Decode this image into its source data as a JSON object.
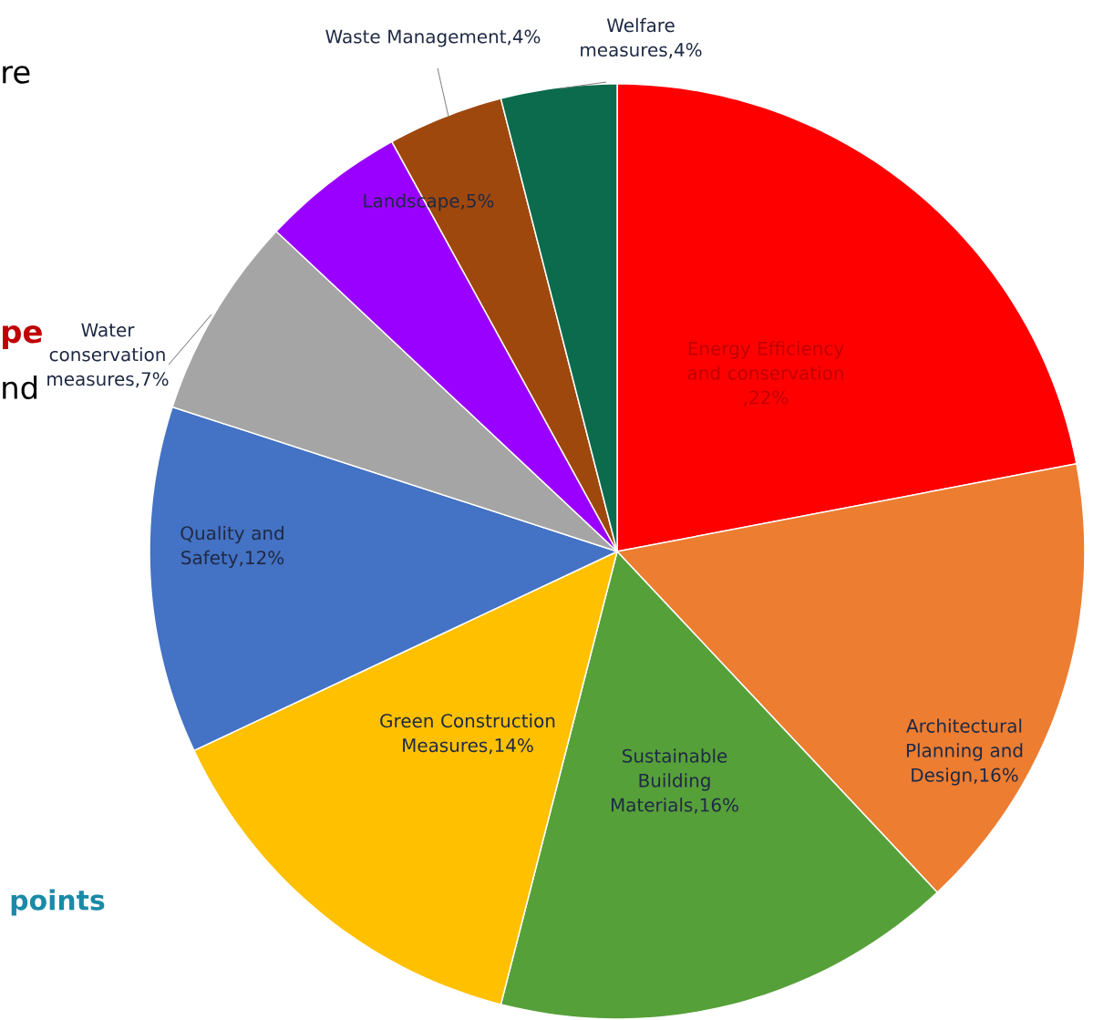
{
  "chart_data": {
    "type": "pie",
    "categories": [
      "Energy Efficiency and conservation",
      "Architectural Planning and Design",
      "Sustainable Building Materials",
      "Green Construction Measures",
      "Quality and Safety",
      "Water conservation measures",
      "Landscape",
      "Waste Management",
      "Welfare measures"
    ],
    "values": [
      22,
      16,
      16,
      14,
      12,
      7,
      5,
      4,
      4
    ],
    "value_labels": [
      ",22%",
      ",16%",
      ",16%",
      ",14%",
      ",12%",
      ",7%",
      ",5%",
      ",4%",
      ",4%"
    ],
    "colors": [
      "#ff0000",
      "#ed7d31",
      "#56a03a",
      "#ffc000",
      "#4472c4",
      "#a5a5a5",
      "#9a00ff",
      "#9e480e",
      "#0b6b4c"
    ],
    "annotations": [
      "re",
      "pe",
      "nd",
      "points"
    ]
  }
}
